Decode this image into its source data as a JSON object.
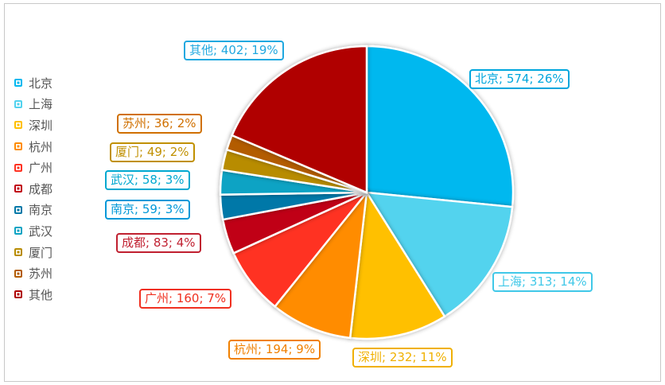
{
  "chart_data": {
    "type": "pie",
    "title": "",
    "legend_position": "left",
    "categories": [
      "北京",
      "上海",
      "深圳",
      "杭州",
      "广州",
      "成都",
      "南京",
      "武汉",
      "厦门",
      "苏州",
      "其他"
    ],
    "values": [
      574,
      313,
      232,
      194,
      160,
      83,
      59,
      58,
      49,
      36,
      402
    ],
    "percent_labels": [
      "26%",
      "14%",
      "11%",
      "9%",
      "7%",
      "4%",
      "3%",
      "3%",
      "2%",
      "2%",
      "19%"
    ],
    "data_labels": [
      "北京; 574; 26%",
      "上海; 313; 14%",
      "深圳; 232; 11%",
      "杭州; 194; 9%",
      "广州; 160; 7%",
      "成都; 83; 4%",
      "南京; 59; 3%",
      "武汉; 58; 3%",
      "厦门; 49; 2%",
      "苏州; 36; 2%",
      "其他; 402; 19%"
    ],
    "colors": [
      "#00b8ef",
      "#52d3ee",
      "#ffc000",
      "#ff8c00",
      "#ff3322",
      "#c00012",
      "#0078a8",
      "#0aa3c4",
      "#b88c00",
      "#b35c00",
      "#b00000"
    ],
    "label_colors": [
      "#00a6dd",
      "#40c8e8",
      "#f0b000",
      "#f08000",
      "#f03020",
      "#c02030",
      "#0098d8",
      "#00a8d0",
      "#c09000",
      "#d07000",
      "#20a8e0"
    ]
  }
}
